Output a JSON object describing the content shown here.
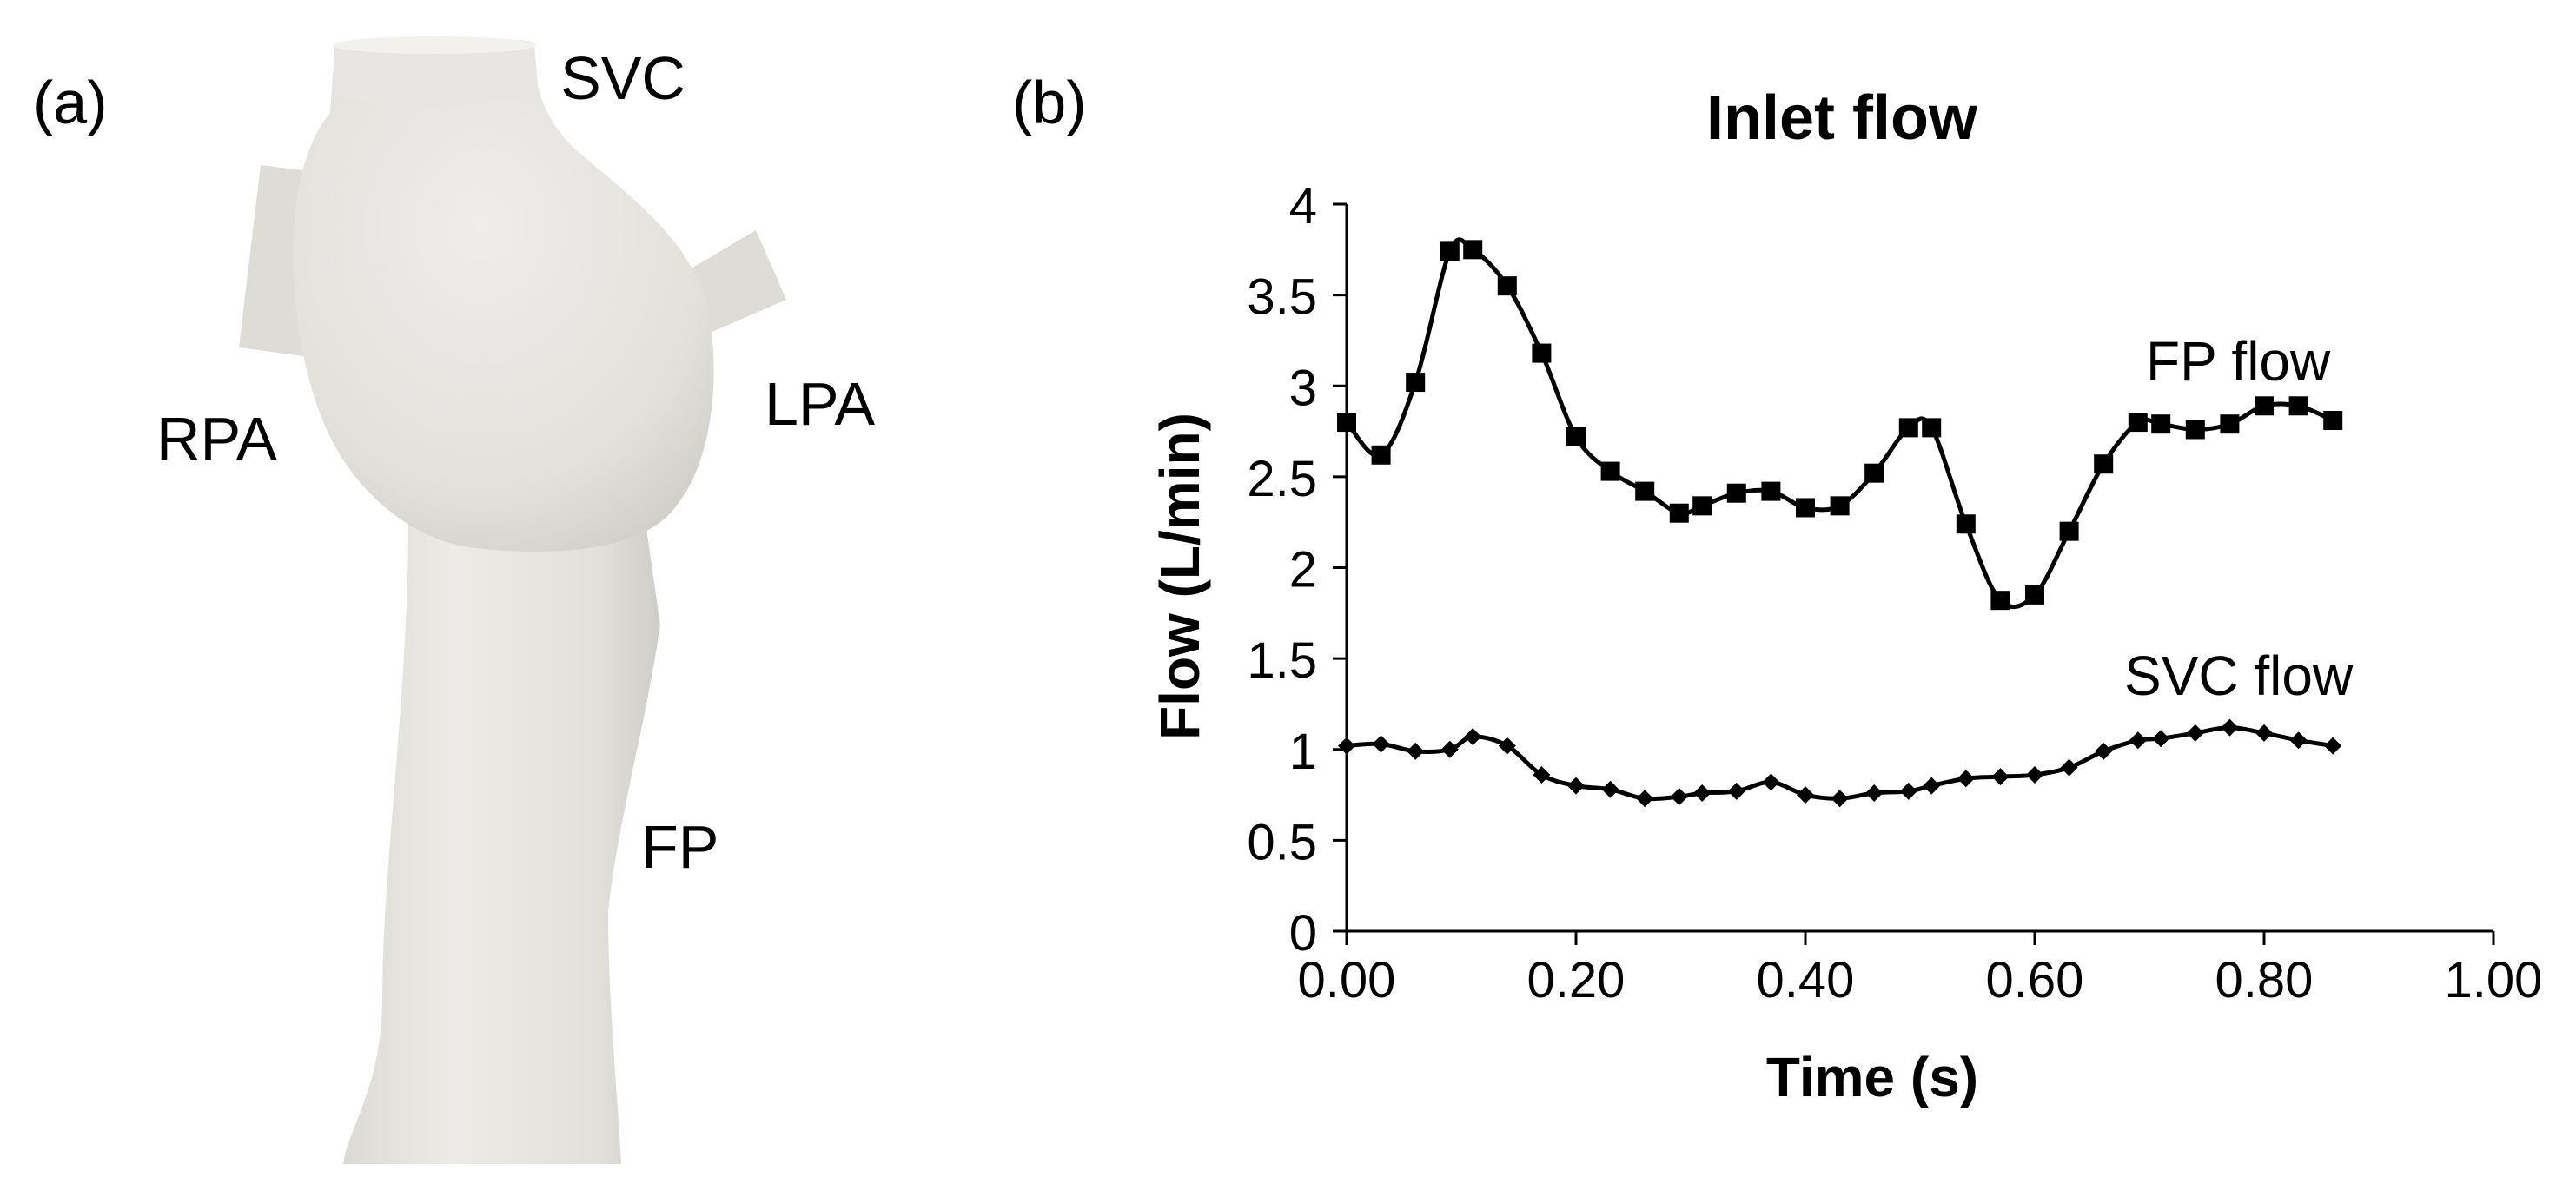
{
  "panel_a": {
    "label": "(a)",
    "anatomy_labels": {
      "svc": "SVC",
      "rpa": "RPA",
      "lpa": "LPA",
      "fp": "FP"
    },
    "model_color": "#ebe9e4"
  },
  "panel_b": {
    "label": "(b)"
  },
  "chart_data": {
    "type": "line",
    "title": "Inlet flow",
    "xlabel": "Time (s)",
    "ylabel": "Flow (L/min)",
    "xlim": [
      0,
      1.0
    ],
    "ylim": [
      0,
      4
    ],
    "x_ticks": [
      "0.00",
      "0.20",
      "0.40",
      "0.60",
      "0.80",
      "1.00"
    ],
    "y_ticks": [
      "0",
      "0.5",
      "1",
      "1.5",
      "2",
      "2.5",
      "3",
      "3.5",
      "4"
    ],
    "grid": false,
    "series": [
      {
        "name": "FP flow",
        "label": "FP flow",
        "marker": "square",
        "x": [
          0.0,
          0.03,
          0.06,
          0.09,
          0.11,
          0.14,
          0.17,
          0.2,
          0.23,
          0.26,
          0.29,
          0.31,
          0.34,
          0.37,
          0.4,
          0.43,
          0.46,
          0.49,
          0.51,
          0.54,
          0.57,
          0.6,
          0.63,
          0.66,
          0.69,
          0.71,
          0.74,
          0.77,
          0.8,
          0.83,
          0.86
        ],
        "values": [
          2.8,
          2.62,
          3.02,
          3.74,
          3.75,
          3.55,
          3.18,
          2.72,
          2.53,
          2.42,
          2.3,
          2.34,
          2.41,
          2.42,
          2.33,
          2.34,
          2.52,
          2.77,
          2.77,
          2.24,
          1.82,
          1.85,
          2.2,
          2.57,
          2.8,
          2.79,
          2.76,
          2.79,
          2.89,
          2.89,
          2.81
        ]
      },
      {
        "name": "SVC flow",
        "label": "SVC flow",
        "marker": "diamond",
        "x": [
          0.0,
          0.03,
          0.06,
          0.09,
          0.11,
          0.14,
          0.17,
          0.2,
          0.23,
          0.26,
          0.29,
          0.31,
          0.34,
          0.37,
          0.4,
          0.43,
          0.46,
          0.49,
          0.51,
          0.54,
          0.57,
          0.6,
          0.63,
          0.66,
          0.69,
          0.71,
          0.74,
          0.77,
          0.8,
          0.83,
          0.86
        ],
        "values": [
          1.02,
          1.03,
          0.99,
          1.0,
          1.07,
          1.02,
          0.86,
          0.8,
          0.78,
          0.73,
          0.74,
          0.76,
          0.77,
          0.82,
          0.75,
          0.73,
          0.76,
          0.77,
          0.8,
          0.84,
          0.85,
          0.86,
          0.9,
          0.99,
          1.05,
          1.06,
          1.09,
          1.12,
          1.09,
          1.05,
          1.02
        ]
      }
    ]
  }
}
